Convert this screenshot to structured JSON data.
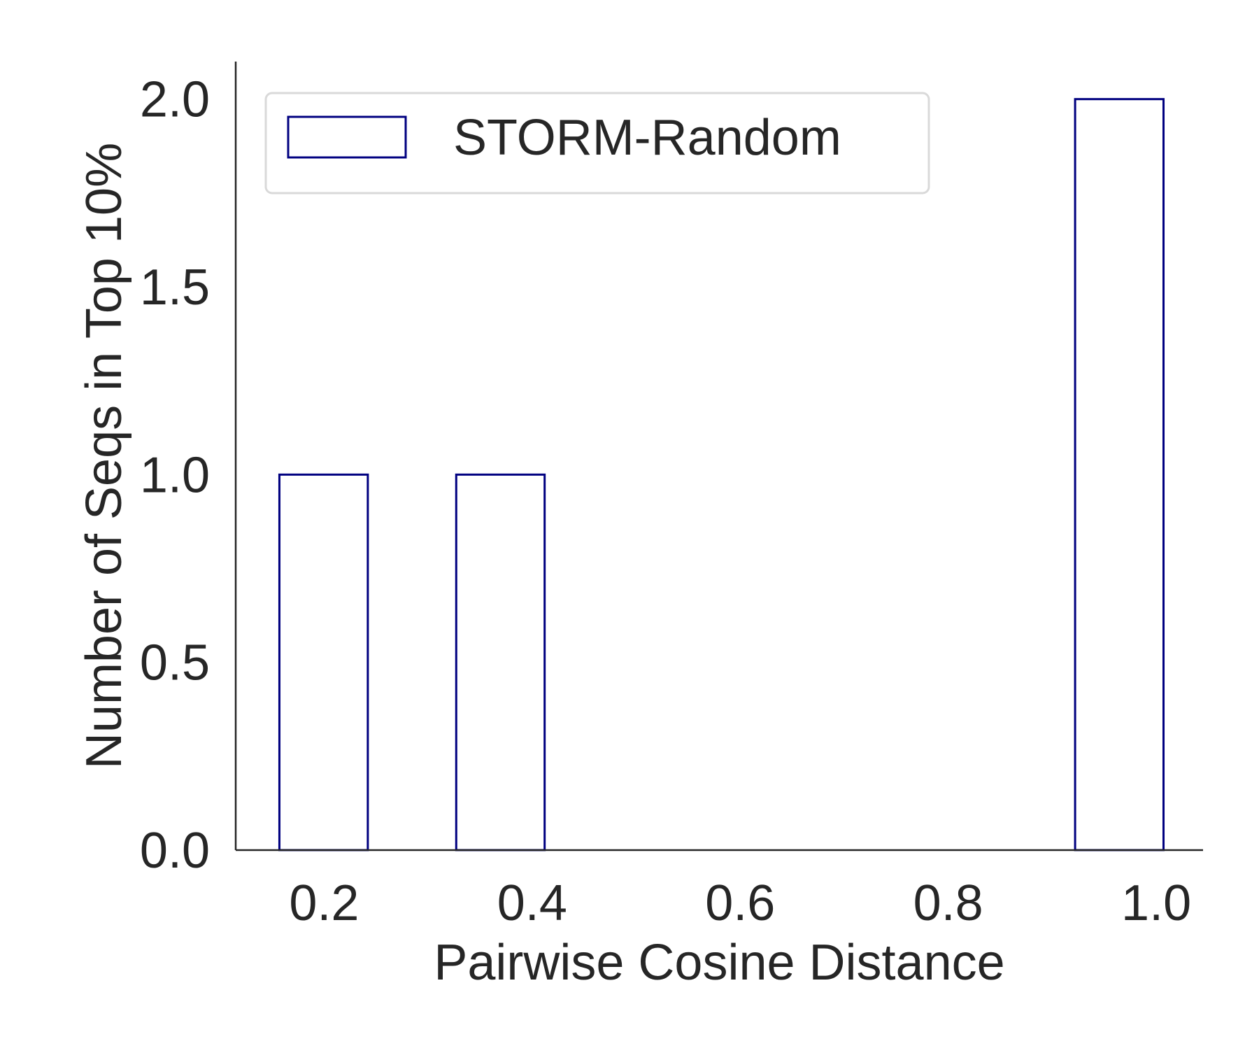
{
  "chart_data": {
    "type": "bar",
    "title": "",
    "xlabel": "Pairwise Cosine Distance",
    "ylabel": "Number of Seqs in Top 10%",
    "xlim": [
      0.115,
      1.045
    ],
    "ylim": [
      0,
      2.1
    ],
    "xticks": [
      0.2,
      0.4,
      0.6,
      0.8,
      1.0
    ],
    "xtick_labels": [
      "0.2",
      "0.4",
      "0.6",
      "0.8",
      "1.0"
    ],
    "yticks": [
      0.0,
      0.5,
      1.0,
      1.5,
      2.0
    ],
    "ytick_labels": [
      "0.0",
      "0.5",
      "1.0",
      "1.5",
      "2.0"
    ],
    "grid": false,
    "legend": {
      "position": "upper-left",
      "entries": [
        {
          "label": "STORM-Random",
          "style": "outline"
        }
      ]
    },
    "series": [
      {
        "name": "STORM-Random",
        "edge_color": "#000080",
        "fill_color": "#ffffff",
        "bins": [
          {
            "x0": 0.157,
            "x1": 0.242,
            "value": 1
          },
          {
            "x0": 0.242,
            "x1": 0.327,
            "value": 0
          },
          {
            "x0": 0.327,
            "x1": 0.412,
            "value": 1
          },
          {
            "x0": 0.412,
            "x1": 0.497,
            "value": 0
          },
          {
            "x0": 0.497,
            "x1": 0.582,
            "value": 0
          },
          {
            "x0": 0.582,
            "x1": 0.667,
            "value": 0
          },
          {
            "x0": 0.667,
            "x1": 0.752,
            "value": 0
          },
          {
            "x0": 0.752,
            "x1": 0.837,
            "value": 0
          },
          {
            "x0": 0.837,
            "x1": 0.922,
            "value": 0
          },
          {
            "x0": 0.922,
            "x1": 1.007,
            "value": 2
          }
        ]
      }
    ]
  }
}
